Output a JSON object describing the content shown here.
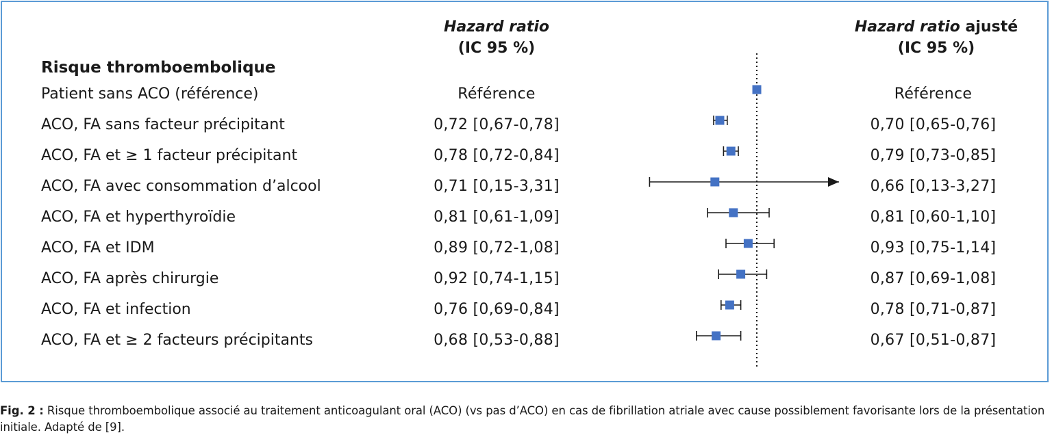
{
  "header": {
    "hr_line1": "Hazard ratio",
    "hr_line2": "(IC 95 %)",
    "ahr_line1_italic": "Hazard ratio",
    "ahr_line1_rest": " ajusté",
    "ahr_line2": "(IC 95 %)"
  },
  "section_title": "Risque thromboembolique",
  "colors": {
    "marker": "#4472c4",
    "frame": "#5b9bd5",
    "line": "#1a1a1a"
  },
  "rows": [
    {
      "label": "Patient sans ACO (référence)",
      "hr_text": "Référence",
      "ahr_text": "Référence"
    },
    {
      "label": "ACO, FA sans facteur précipitant",
      "hr_text": "0,72 [0,67-0,78]",
      "ahr_text": "0,70 [0,65-0,76]"
    },
    {
      "label": "ACO, FA et ≥ 1 facteur précipitant",
      "hr_text": "0,78 [0,72-0,84]",
      "ahr_text": "0,79 [0,73-0,85]"
    },
    {
      "label": "ACO, FA avec consommation d’alcool",
      "hr_text": "0,71 [0,15-3,31]",
      "ahr_text": "0,66 [0,13-3,27]"
    },
    {
      "label": "ACO, FA et hyperthyroïdie",
      "hr_text": "0,81 [0,61-1,09]",
      "ahr_text": "0,81 [0,60-1,10]"
    },
    {
      "label": "ACO, FA et IDM",
      "hr_text": "0,89 [0,72-1,08]",
      "ahr_text": "0,93 [0,75-1,14]"
    },
    {
      "label": "ACO, FA après chirurgie",
      "hr_text": "0,92 [0,74-1,15]",
      "ahr_text": "0,87 [0,69-1,08]"
    },
    {
      "label": "ACO, FA et infection",
      "hr_text": "0,76 [0,69-0,84]",
      "ahr_text": "0,78 [0,71-0,87]"
    },
    {
      "label": "ACO, FA et ≥ 2 facteurs précipitants",
      "hr_text": "0,68 [0,53-0,88]",
      "ahr_text": "0,67 [0,51-0,87]"
    }
  ],
  "chart_data": {
    "type": "forest",
    "reference_value": 1.0,
    "x_scale": "linear",
    "x_visible_range": [
      0.53,
      1.3
    ],
    "reference_line_style": "dotted",
    "arrow_clipped_rows": [
      "ACO, FA avec consommation d’alcool"
    ],
    "points": [
      {
        "label": "Patient sans ACO (référence)",
        "value": 1.0,
        "ci": null
      },
      {
        "label": "ACO, FA sans facteur précipitant",
        "value": 0.7,
        "ci": [
          0.65,
          0.76
        ]
      },
      {
        "label": "ACO, FA et ≥ 1 facteur précipitant",
        "value": 0.79,
        "ci": [
          0.73,
          0.85
        ]
      },
      {
        "label": "ACO, FA avec consommation d’alcool",
        "value": 0.66,
        "ci": [
          0.13,
          3.27
        ]
      },
      {
        "label": "ACO, FA et hyperthyroïdie",
        "value": 0.81,
        "ci": [
          0.6,
          1.1
        ]
      },
      {
        "label": "ACO, FA et IDM",
        "value": 0.93,
        "ci": [
          0.75,
          1.14
        ]
      },
      {
        "label": "ACO, FA après chirurgie",
        "value": 0.87,
        "ci": [
          0.69,
          1.08
        ]
      },
      {
        "label": "ACO, FA et infection",
        "value": 0.78,
        "ci": [
          0.71,
          0.87
        ]
      },
      {
        "label": "ACO, FA et ≥ 2 facteurs précipitants",
        "value": 0.67,
        "ci": [
          0.51,
          0.87
        ]
      }
    ]
  },
  "caption": {
    "prefix": "Fig. 2 :",
    "text": " Risque thromboembolique associé au traitement anticoagulant oral (ACO) (vs pas d’ACO) en cas de fibrillation atriale avec cause possiblement favorisante lors de la présentation initiale. Adapté de [9]."
  }
}
